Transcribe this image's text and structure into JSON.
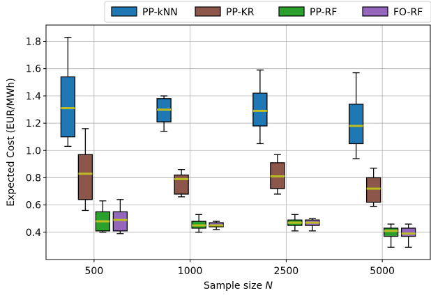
{
  "chart_data": {
    "type": "box",
    "title": "",
    "xlabel": "Sample size",
    "xlabel_var": "N",
    "ylabel": "Expected Cost (EUR/MWh)",
    "categories": [
      "500",
      "1000",
      "2500",
      "5000"
    ],
    "ylim": [
      0.2,
      1.92
    ],
    "yticks": [
      0.4,
      0.6,
      0.8,
      1.0,
      1.2,
      1.4,
      1.6,
      1.8
    ],
    "ytick_labels": [
      "0.4",
      "0.6",
      "0.8",
      "1.0",
      "1.2",
      "1.4",
      "1.6",
      "1.8"
    ],
    "grid": true,
    "legend_position": "top, above plot",
    "median_color": "#bcbd22",
    "series": [
      {
        "name": "PP-kNN",
        "color": "#1f77b4",
        "boxes": [
          {
            "whisker_low": 1.03,
            "q1": 1.1,
            "median": 1.31,
            "q3": 1.54,
            "whisker_high": 1.83
          },
          {
            "whisker_low": 1.14,
            "q1": 1.21,
            "median": 1.3,
            "q3": 1.38,
            "whisker_high": 1.4
          },
          {
            "whisker_low": 1.05,
            "q1": 1.18,
            "median": 1.29,
            "q3": 1.42,
            "whisker_high": 1.59
          },
          {
            "whisker_low": 0.94,
            "q1": 1.05,
            "median": 1.18,
            "q3": 1.34,
            "whisker_high": 1.57
          }
        ]
      },
      {
        "name": "PP-KR",
        "color": "#8c564b",
        "boxes": [
          {
            "whisker_low": 0.56,
            "q1": 0.64,
            "median": 0.83,
            "q3": 0.97,
            "whisker_high": 1.16
          },
          {
            "whisker_low": 0.66,
            "q1": 0.68,
            "median": 0.79,
            "q3": 0.82,
            "whisker_high": 0.86
          },
          {
            "whisker_low": 0.68,
            "q1": 0.72,
            "median": 0.81,
            "q3": 0.91,
            "whisker_high": 0.97
          },
          {
            "whisker_low": 0.59,
            "q1": 0.62,
            "median": 0.72,
            "q3": 0.8,
            "whisker_high": 0.87
          }
        ]
      },
      {
        "name": "PP-RF",
        "color": "#2ca02c",
        "boxes": [
          {
            "whisker_low": 0.4,
            "q1": 0.41,
            "median": 0.48,
            "q3": 0.55,
            "whisker_high": 0.63
          },
          {
            "whisker_low": 0.4,
            "q1": 0.43,
            "median": 0.45,
            "q3": 0.48,
            "whisker_high": 0.53
          },
          {
            "whisker_low": 0.41,
            "q1": 0.45,
            "median": 0.47,
            "q3": 0.49,
            "whisker_high": 0.53
          },
          {
            "whisker_low": 0.29,
            "q1": 0.37,
            "median": 0.41,
            "q3": 0.43,
            "whisker_high": 0.46
          }
        ]
      },
      {
        "name": "FO-RF",
        "color": "#9467bd",
        "boxes": [
          {
            "whisker_low": 0.39,
            "q1": 0.41,
            "median": 0.49,
            "q3": 0.55,
            "whisker_high": 0.64
          },
          {
            "whisker_low": 0.42,
            "q1": 0.44,
            "median": 0.45,
            "q3": 0.47,
            "whisker_high": 0.48
          },
          {
            "whisker_low": 0.41,
            "q1": 0.45,
            "median": 0.47,
            "q3": 0.49,
            "whisker_high": 0.5
          },
          {
            "whisker_low": 0.29,
            "q1": 0.37,
            "median": 0.39,
            "q3": 0.43,
            "whisker_high": 0.46
          }
        ]
      }
    ]
  }
}
